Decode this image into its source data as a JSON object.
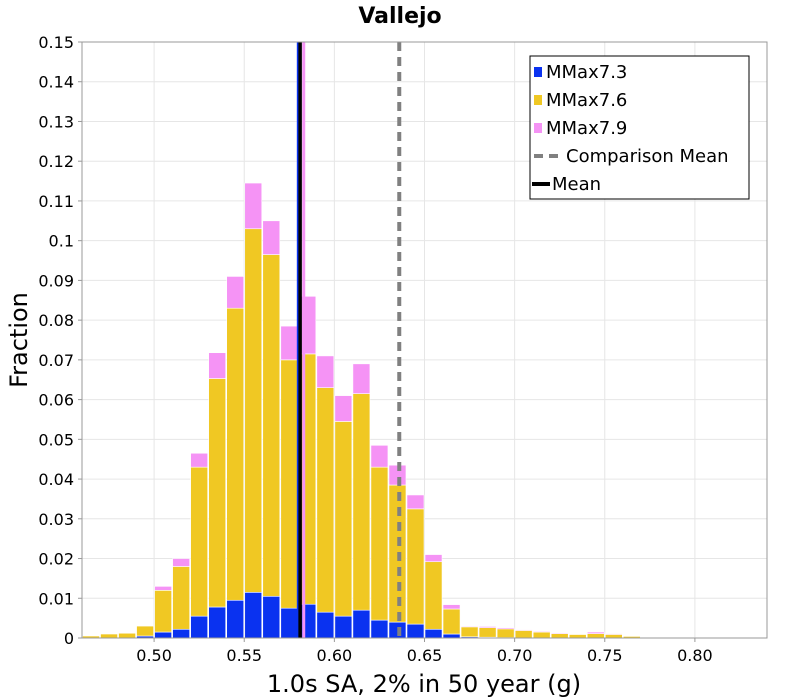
{
  "chart_data": {
    "type": "bar",
    "stacked": true,
    "title": "Vallejo",
    "xlabel": "1.0s SA, 2% in 50 year (g)",
    "ylabel": "Fraction",
    "xlim": [
      0.46,
      0.84
    ],
    "ylim": [
      0,
      0.15
    ],
    "xticks": [
      "0.50",
      "0.55",
      "0.60",
      "0.65",
      "0.70",
      "0.75",
      "0.80"
    ],
    "xtick_values": [
      0.5,
      0.55,
      0.6,
      0.65,
      0.7,
      0.75,
      0.8
    ],
    "yticks": [
      "0",
      "0.01",
      "0.02",
      "0.03",
      "0.04",
      "0.05",
      "0.06",
      "0.07",
      "0.08",
      "0.09",
      "0.1",
      "0.11",
      "0.12",
      "0.13",
      "0.14",
      "0.15"
    ],
    "ytick_values": [
      0,
      0.01,
      0.02,
      0.03,
      0.04,
      0.05,
      0.06,
      0.07,
      0.08,
      0.09,
      0.1,
      0.11,
      0.12,
      0.13,
      0.14,
      0.15
    ],
    "grid": true,
    "legend_position": "top-right",
    "bin_width": 0.01,
    "bin_centers": [
      0.465,
      0.475,
      0.485,
      0.495,
      0.505,
      0.515,
      0.525,
      0.535,
      0.545,
      0.555,
      0.565,
      0.575,
      0.585,
      0.595,
      0.605,
      0.615,
      0.625,
      0.635,
      0.645,
      0.655,
      0.665,
      0.675,
      0.685,
      0.695,
      0.705,
      0.715,
      0.725,
      0.735,
      0.745,
      0.755,
      0.765,
      0.775,
      0.785,
      0.795,
      0.805,
      0.815,
      0.825
    ],
    "series": [
      {
        "name": "MMax7.3",
        "color": "#0a32f0",
        "values": [
          0.0,
          0.0,
          0.0,
          0.0005,
          0.0015,
          0.0022,
          0.0055,
          0.0078,
          0.0095,
          0.0115,
          0.0105,
          0.0075,
          0.0085,
          0.0065,
          0.0055,
          0.007,
          0.0045,
          0.004,
          0.0035,
          0.0022,
          0.001,
          0.0003,
          0.0002,
          0.0001,
          0.0,
          0.0,
          0.0,
          0.0,
          0.0,
          0.0,
          0.0,
          0.0,
          0.0,
          0.0,
          0.0,
          0.0,
          0.0
        ]
      },
      {
        "name": "MMax7.6",
        "color": "#f0c823",
        "values": [
          0.0005,
          0.001,
          0.0012,
          0.0025,
          0.0105,
          0.0158,
          0.0375,
          0.0575,
          0.0735,
          0.0915,
          0.086,
          0.0625,
          0.063,
          0.0565,
          0.049,
          0.0545,
          0.0385,
          0.0345,
          0.029,
          0.017,
          0.0063,
          0.0025,
          0.0024,
          0.0022,
          0.0019,
          0.0015,
          0.0011,
          0.0009,
          0.0011,
          0.0009,
          0.0004,
          0.0001,
          0.0001,
          0.0001,
          0.0,
          0.0,
          0.0
        ]
      },
      {
        "name": "MMax7.9",
        "color": "#f593f5",
        "values": [
          0.0,
          0.0,
          0.0,
          0.0,
          0.001,
          0.002,
          0.0035,
          0.0065,
          0.008,
          0.0115,
          0.0085,
          0.0085,
          0.0145,
          0.008,
          0.0065,
          0.0075,
          0.0055,
          0.005,
          0.0035,
          0.0018,
          0.0011,
          0.0002,
          0.0003,
          0.0003,
          0.0002,
          0.0002,
          0.0002,
          0.0001,
          0.0004,
          0.0002,
          0.0,
          0.0001,
          0.0,
          0.0,
          0.0,
          0.0,
          0.0
        ]
      }
    ],
    "mean_value": 0.581,
    "comparison_mean_value": 0.636,
    "mean_lines": [
      {
        "name": "MMax7.3",
        "color": "#0a32f0",
        "value": 0.58
      },
      {
        "name": "MMax7.9",
        "color": "#f593f5",
        "value": 0.583
      }
    ],
    "legend": [
      {
        "label": "MMax7.3",
        "kind": "box",
        "color": "#0a32f0"
      },
      {
        "label": "MMax7.6",
        "kind": "box",
        "color": "#f0c823"
      },
      {
        "label": "MMax7.9",
        "kind": "box",
        "color": "#f593f5"
      },
      {
        "label": "Comparison Mean",
        "kind": "dashed",
        "color": "#808080"
      },
      {
        "label": "Mean",
        "kind": "line",
        "color": "#000000"
      }
    ]
  }
}
